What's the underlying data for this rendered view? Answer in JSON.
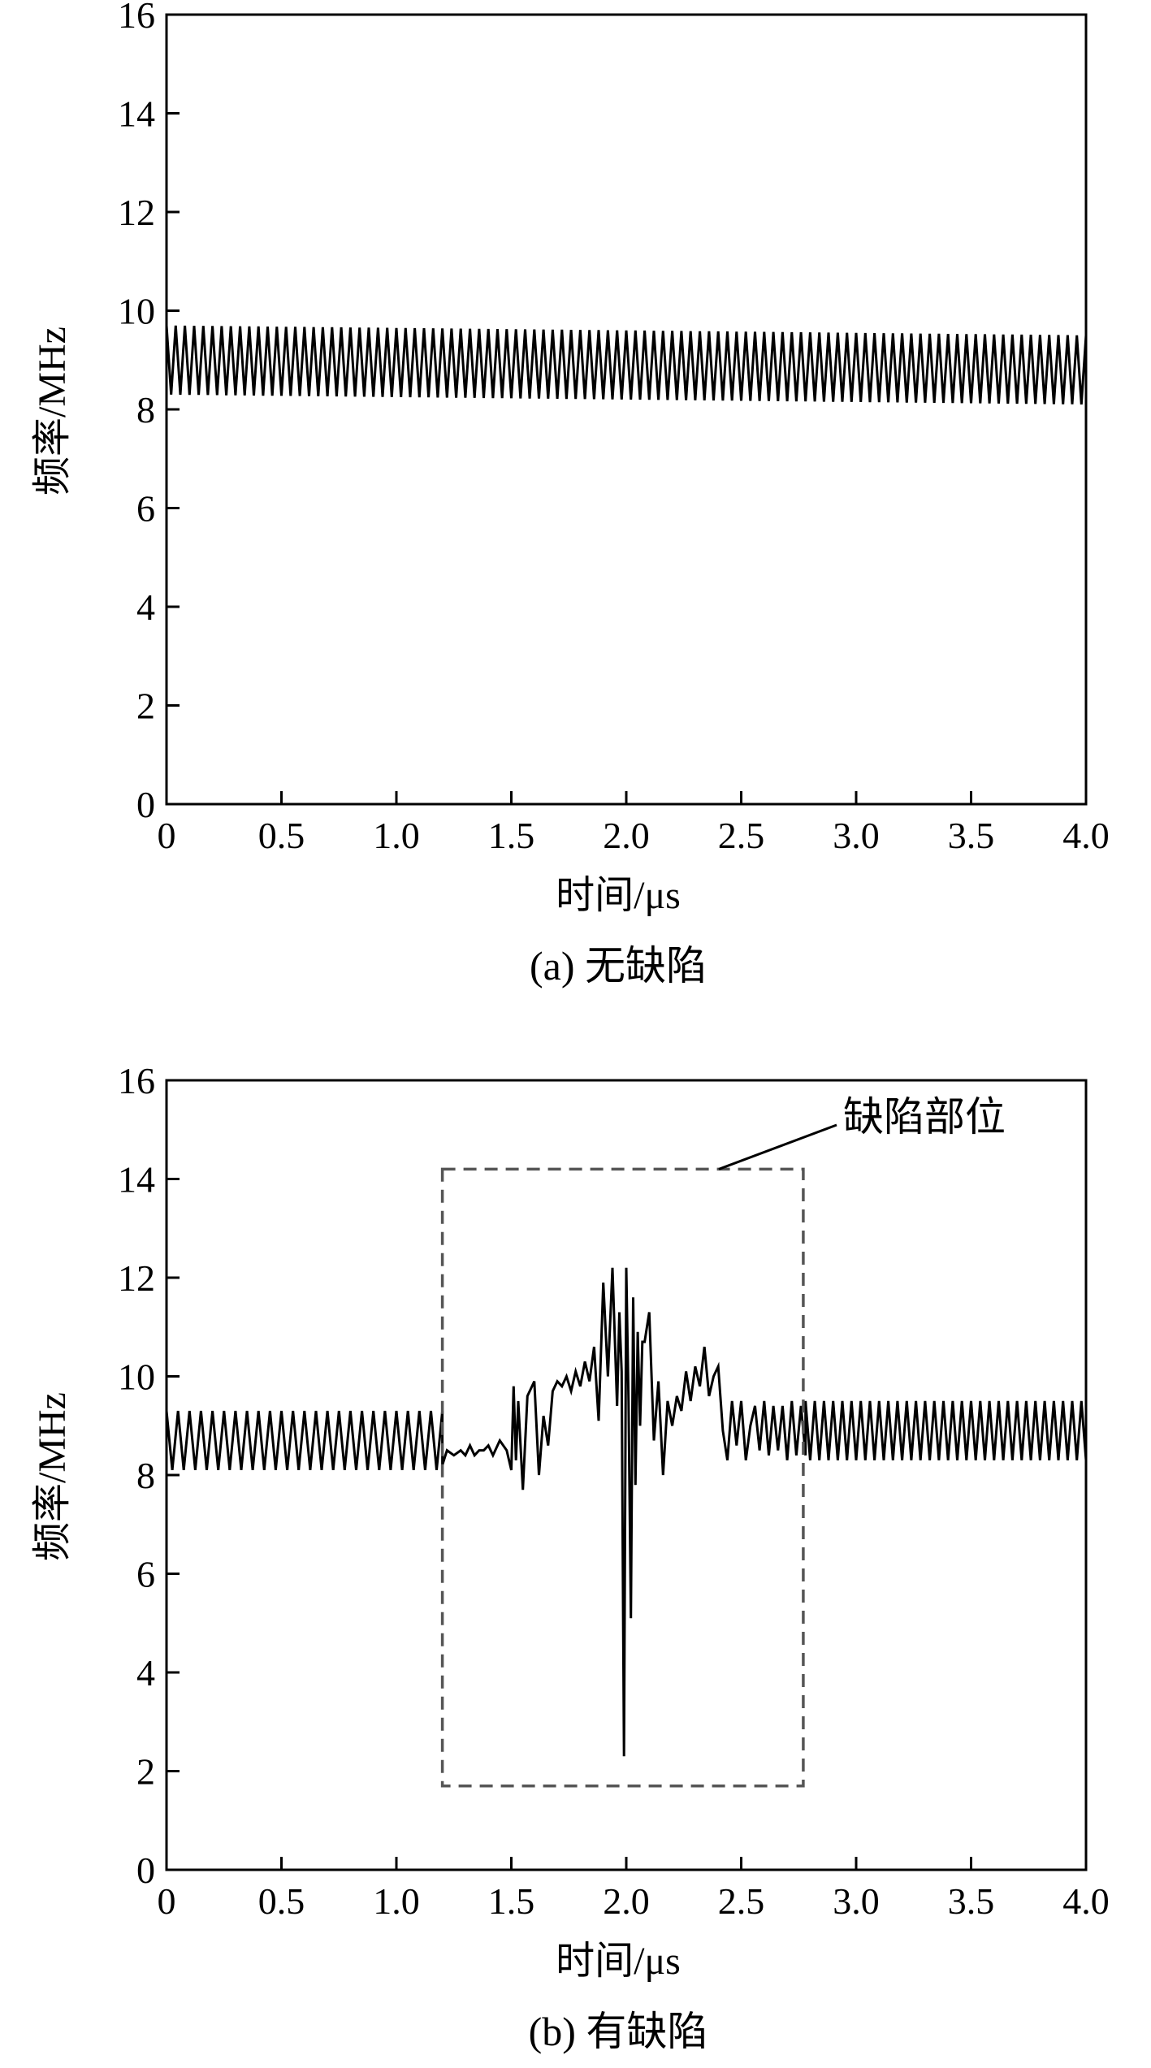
{
  "chart_data": [
    {
      "type": "line",
      "caption": "(a) 无缺陷",
      "xlabel": "时间/μs",
      "ylabel": "频率/MHz",
      "xlim": [
        0,
        4.0
      ],
      "ylim": [
        0,
        16
      ],
      "xticks": [
        "0",
        "0.5",
        "1.0",
        "1.5",
        "2.0",
        "2.5",
        "3.0",
        "3.5",
        "4.0"
      ],
      "yticks": [
        "0",
        "2",
        "4",
        "6",
        "8",
        "10",
        "12",
        "14",
        "16"
      ],
      "grid": false,
      "line_color": "#000000",
      "series": [
        {
          "pattern": "oscillation",
          "x_start": 0.0,
          "x_end": 4.0,
          "period": 0.04,
          "high_start": 9.7,
          "high_end": 9.5,
          "low_start": 8.3,
          "low_end": 8.1
        }
      ]
    },
    {
      "type": "line",
      "caption": "(b) 有缺陷",
      "xlabel": "时间/μs",
      "ylabel": "频率/MHz",
      "xlim": [
        0,
        4.0
      ],
      "ylim": [
        0,
        16
      ],
      "xticks": [
        "0",
        "0.5",
        "1.0",
        "1.5",
        "2.0",
        "2.5",
        "3.0",
        "3.5",
        "4.0"
      ],
      "yticks": [
        "0",
        "2",
        "4",
        "6",
        "8",
        "10",
        "12",
        "14",
        "16"
      ],
      "grid": false,
      "line_color": "#000000",
      "annotation": {
        "text": "缺陷部位",
        "box_x": [
          1.2,
          2.77
        ],
        "box_y": [
          1.7,
          14.2
        ],
        "box_color": "#555555"
      },
      "series": [
        {
          "pattern": "composite",
          "segments": [
            {
              "kind": "oscillation",
              "x_start": 0.0,
              "x_end": 1.2,
              "period": 0.05,
              "high": 9.3,
              "low": 8.1
            },
            {
              "kind": "points",
              "x": [
                1.2,
                1.22,
                1.25,
                1.28,
                1.3,
                1.32,
                1.34,
                1.36,
                1.38,
                1.4,
                1.42,
                1.45,
                1.48,
                1.5,
                1.51,
                1.52,
                1.53,
                1.55,
                1.57,
                1.6,
                1.62,
                1.64,
                1.66,
                1.68,
                1.7,
                1.72,
                1.74,
                1.76,
                1.78,
                1.8,
                1.82,
                1.84,
                1.86,
                1.88,
                1.9,
                1.92,
                1.94,
                1.96,
                1.97,
                1.98,
                1.99,
                2.0,
                2.01,
                2.02,
                2.03,
                2.04,
                2.05,
                2.06,
                2.07,
                2.08,
                2.1,
                2.12,
                2.14,
                2.16,
                2.18,
                2.2,
                2.22,
                2.24,
                2.26,
                2.28,
                2.3,
                2.32,
                2.34,
                2.36,
                2.38,
                2.4,
                2.42,
                2.44,
                2.46,
                2.48,
                2.5,
                2.52,
                2.54,
                2.56,
                2.58,
                2.6,
                2.62,
                2.64,
                2.66,
                2.68,
                2.7,
                2.72,
                2.74,
                2.76,
                2.78
              ],
              "y": [
                8.2,
                8.5,
                8.4,
                8.5,
                8.4,
                8.6,
                8.4,
                8.5,
                8.5,
                8.6,
                8.4,
                8.7,
                8.5,
                8.1,
                9.8,
                8.3,
                9.5,
                7.7,
                9.6,
                9.9,
                8.0,
                9.2,
                8.6,
                9.7,
                9.9,
                9.8,
                10.0,
                9.7,
                10.1,
                9.8,
                10.3,
                9.9,
                10.6,
                9.1,
                11.9,
                10.0,
                12.2,
                9.4,
                11.3,
                10.1,
                2.3,
                12.2,
                9.5,
                5.1,
                11.6,
                7.8,
                10.9,
                9.0,
                10.7,
                10.7,
                11.3,
                8.7,
                9.9,
                8.0,
                9.5,
                9.0,
                9.6,
                9.3,
                10.1,
                9.5,
                10.2,
                9.8,
                10.6,
                9.6,
                10.0,
                10.2,
                8.9,
                8.3,
                9.5,
                8.6,
                9.5,
                8.3,
                9.0,
                9.4,
                8.5,
                9.5,
                8.4,
                9.4,
                8.5,
                9.4,
                8.3,
                9.5,
                8.4,
                9.4,
                8.4
              ]
            },
            {
              "kind": "oscillation",
              "x_start": 2.78,
              "x_end": 4.0,
              "period": 0.04,
              "high": 9.5,
              "low": 8.3
            }
          ]
        }
      ]
    }
  ]
}
